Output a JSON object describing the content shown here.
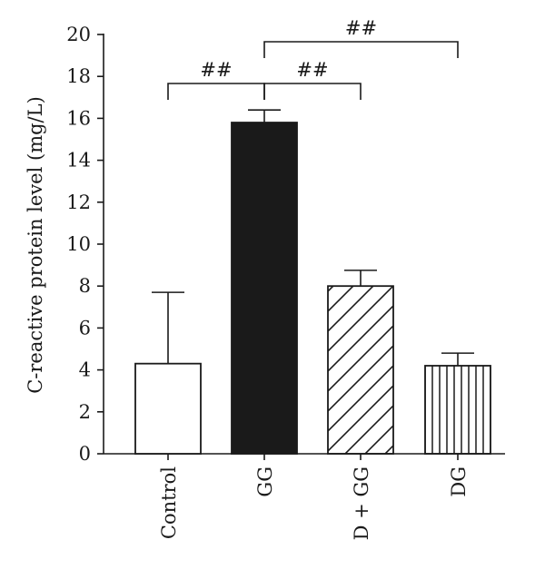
{
  "chart_data": {
    "type": "bar",
    "title": "",
    "xlabel": "",
    "ylabel": "C-reactive protein level (mg/L)",
    "ylim": [
      0,
      20
    ],
    "yticks": [
      0,
      2,
      4,
      6,
      8,
      10,
      12,
      14,
      16,
      18,
      20
    ],
    "categories": [
      "Control",
      "GG",
      "D + GG",
      "DG"
    ],
    "values": [
      4.3,
      15.8,
      8.0,
      4.2
    ],
    "errors": [
      3.4,
      0.6,
      0.75,
      0.6
    ],
    "fills": [
      "open",
      "solid",
      "diagonal-hatch",
      "vertical-hatch"
    ],
    "colors": {
      "solid": "#1a1a1a",
      "line": "#1a1a1a"
    },
    "significance": [
      {
        "from": "Control",
        "to": "GG",
        "label": "##"
      },
      {
        "from": "GG",
        "to": "D + GG",
        "label": "##"
      },
      {
        "from": "GG",
        "to": "DG",
        "label": "##"
      }
    ],
    "grid": false
  }
}
